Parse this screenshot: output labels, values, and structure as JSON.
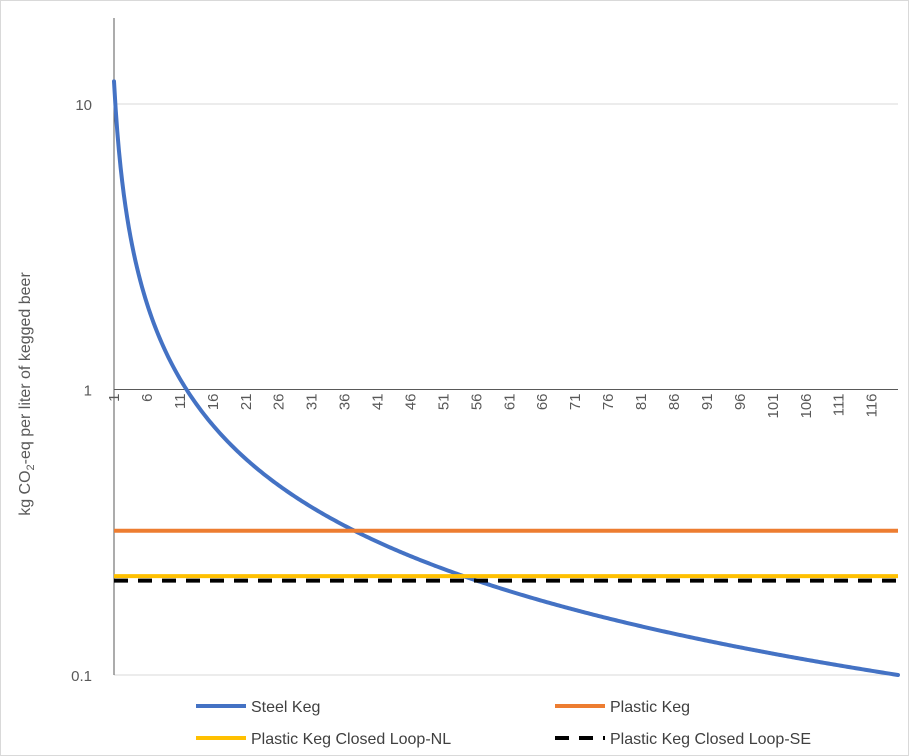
{
  "chart_data": {
    "type": "line",
    "ylabel_parts": [
      "kg CO",
      "2",
      "-eq per liter of kegged beer"
    ],
    "yscale": "log",
    "ylim": [
      0.1,
      20
    ],
    "yticks": [
      {
        "value": 0.1,
        "label": "0.1"
      },
      {
        "value": 1,
        "label": "1"
      },
      {
        "value": 10,
        "label": "10"
      }
    ],
    "x_range": [
      1,
      120
    ],
    "x_crosses_y_at": 1,
    "xtick_labels": [
      "1",
      "6",
      "11",
      "16",
      "21",
      "26",
      "31",
      "36",
      "41",
      "46",
      "51",
      "56",
      "61",
      "66",
      "71",
      "76",
      "81",
      "86",
      "91",
      "96",
      "101",
      "106",
      "111",
      "116"
    ],
    "grid": "horizontal",
    "legend_position": "bottom",
    "series": [
      {
        "name": "Steel Keg",
        "kind": "curve",
        "formula": "a/x^b",
        "a": 12,
        "b": 1.0,
        "x_start": 1,
        "x_end": 120,
        "color": "#4472c4",
        "dash": false
      },
      {
        "name": "Plastic Keg",
        "kind": "constant",
        "value": 0.32,
        "color": "#ed7d31",
        "dash": false
      },
      {
        "name": "Plastic Keg Closed Loop-NL",
        "kind": "constant",
        "value": 0.222,
        "color": "#ffc000",
        "dash": false
      },
      {
        "name": "Plastic Keg Closed Loop-SE",
        "kind": "constant",
        "value": 0.214,
        "color": "#000000",
        "dash": true
      }
    ]
  }
}
